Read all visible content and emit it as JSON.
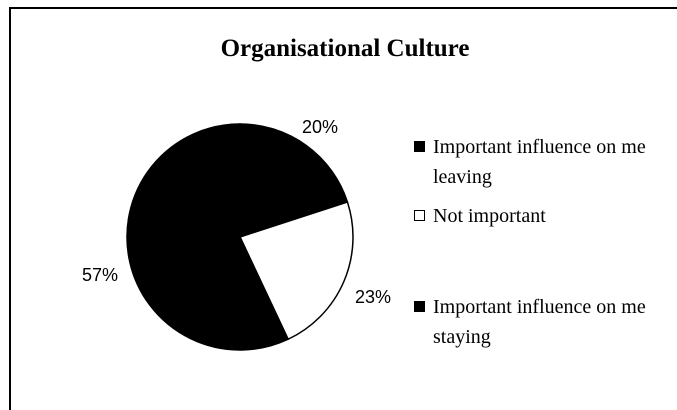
{
  "chart_data": {
    "type": "pie",
    "title": "Organisational Culture",
    "categories": [
      "Important influence on me leaving",
      "Not important",
      "Important influence on me staying"
    ],
    "values": [
      20,
      23,
      57
    ],
    "value_labels": [
      "20%",
      "23%",
      "57%"
    ],
    "colors": [
      "#000000",
      "#ffffff",
      "#000000"
    ],
    "legend": "right"
  }
}
